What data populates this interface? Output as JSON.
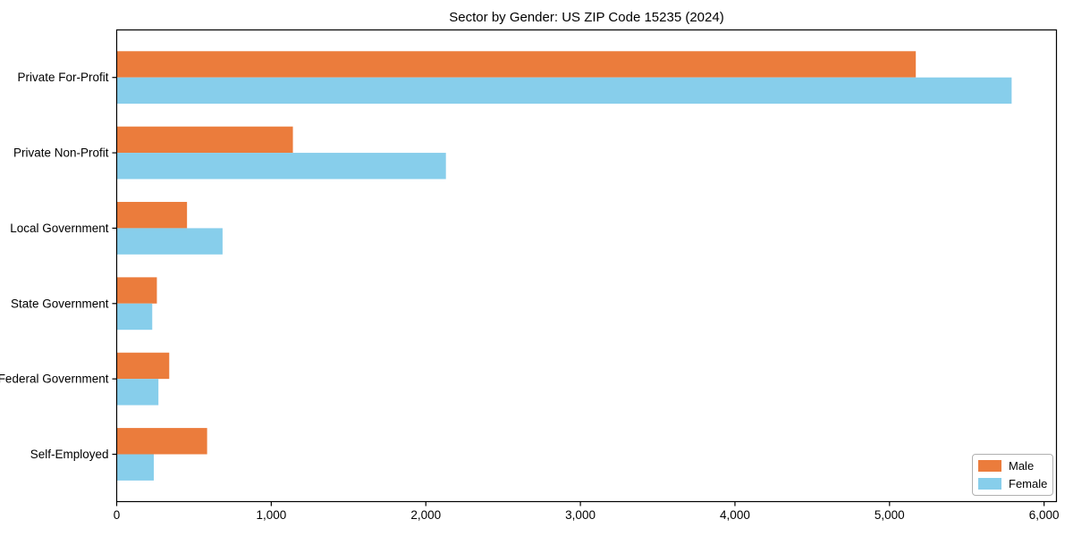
{
  "title": "Sector by Gender: US ZIP Code 15235 (2024)",
  "chart_data": {
    "type": "bar",
    "orientation": "horizontal",
    "title": "Sector by Gender: US ZIP Code 15235 (2024)",
    "xlabel": "",
    "ylabel": "",
    "categories": [
      "Private For-Profit",
      "Private Non-Profit",
      "Local Government",
      "State Government",
      "Federal Government",
      "Self-Employed"
    ],
    "series": [
      {
        "name": "Male",
        "color": "#eb7c3c",
        "values": [
          5170,
          1140,
          455,
          260,
          340,
          585
        ]
      },
      {
        "name": "Female",
        "color": "#87ceeb",
        "values": [
          5790,
          2130,
          685,
          230,
          270,
          240
        ]
      }
    ],
    "xlim": [
      0,
      6080
    ],
    "xticks": [
      0,
      1000,
      2000,
      3000,
      4000,
      5000,
      6000
    ],
    "xtick_labels": [
      "0",
      "1,000",
      "2,000",
      "3,000",
      "4,000",
      "5,000",
      "6,000"
    ],
    "grid": false,
    "legend_position": "lower right",
    "axis_color": "#000000",
    "background_color": "#ffffff"
  }
}
